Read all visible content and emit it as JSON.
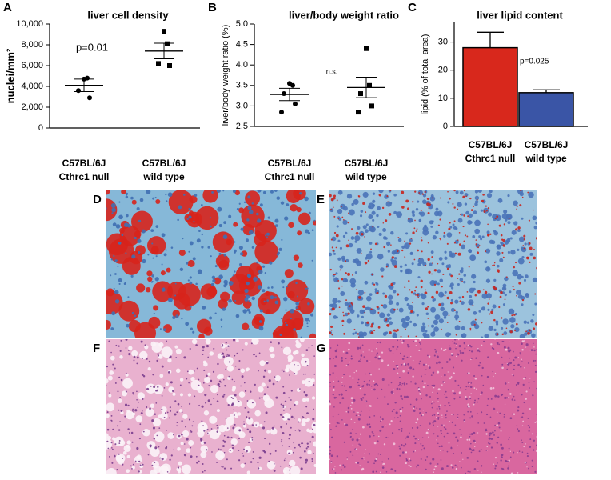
{
  "chart_data": [
    {
      "type": "strip",
      "panel": "A",
      "title": "liver cell density",
      "ylabel": "nuclei/mm²",
      "categories": [
        [
          "C57BL/6J",
          "Cthrc1 null"
        ],
        [
          "C57BL/6J",
          "wild type"
        ]
      ],
      "groups": [
        {
          "marker": "circle",
          "values": [
            4700,
            4800,
            3600,
            2900
          ],
          "mean": 4100,
          "sem": 600
        },
        {
          "marker": "square",
          "values": [
            9300,
            8100,
            6200,
            6000
          ],
          "mean": 7400,
          "sem": 750
        }
      ],
      "annotation": "p=0.01",
      "ylim": [
        0,
        10000
      ],
      "yticks": [
        0,
        {
          "value": 2000,
          "label": "2,000"
        },
        {
          "value": 4000,
          "label": "4,000"
        },
        {
          "value": 6000,
          "label": "6,000"
        },
        {
          "value": 8000,
          "label": "8,000"
        },
        {
          "value": 10000,
          "label": "10,000"
        }
      ]
    },
    {
      "type": "strip",
      "panel": "B",
      "title": "liver/body weight ratio",
      "ylabel": "liver/body weight ratio (%)",
      "categories": [
        [
          "C57BL/6J",
          "Cthrc1 null"
        ],
        [
          "C57BL/6J",
          "wild type"
        ]
      ],
      "groups": [
        {
          "marker": "circle",
          "values": [
            3.55,
            3.5,
            3.3,
            3.05,
            2.85
          ],
          "mean": 3.28,
          "sem": 0.15
        },
        {
          "marker": "square",
          "values": [
            4.4,
            3.5,
            3.3,
            3.0,
            2.85
          ],
          "mean": 3.45,
          "sem": 0.25
        }
      ],
      "annotation": "n.s.",
      "ylim": [
        2.5,
        5.0
      ],
      "yticks": [
        2.5,
        {
          "value": 3,
          "label": "3.0"
        },
        3.5,
        {
          "value": 4,
          "label": "4.0"
        },
        4.5,
        {
          "value": 5,
          "label": "5.0"
        }
      ]
    },
    {
      "type": "bar",
      "panel": "C",
      "title": "liver lipid content",
      "ylabel": "lipid (% of total area)",
      "categories": [
        [
          "C57BL/6J",
          "Cthrc1 null"
        ],
        [
          "C57BL/6J",
          "wild type"
        ]
      ],
      "values": [
        28,
        12
      ],
      "errors": [
        5.5,
        1
      ],
      "colors": [
        "#d8281c",
        "#3a55a6"
      ],
      "annotation": "p=0.025",
      "ylim": [
        0,
        37
      ],
      "yticks": [
        0,
        10,
        20,
        30
      ]
    }
  ],
  "micrographs": [
    {
      "panel": "D"
    },
    {
      "panel": "E"
    },
    {
      "panel": "F"
    },
    {
      "panel": "G"
    }
  ]
}
